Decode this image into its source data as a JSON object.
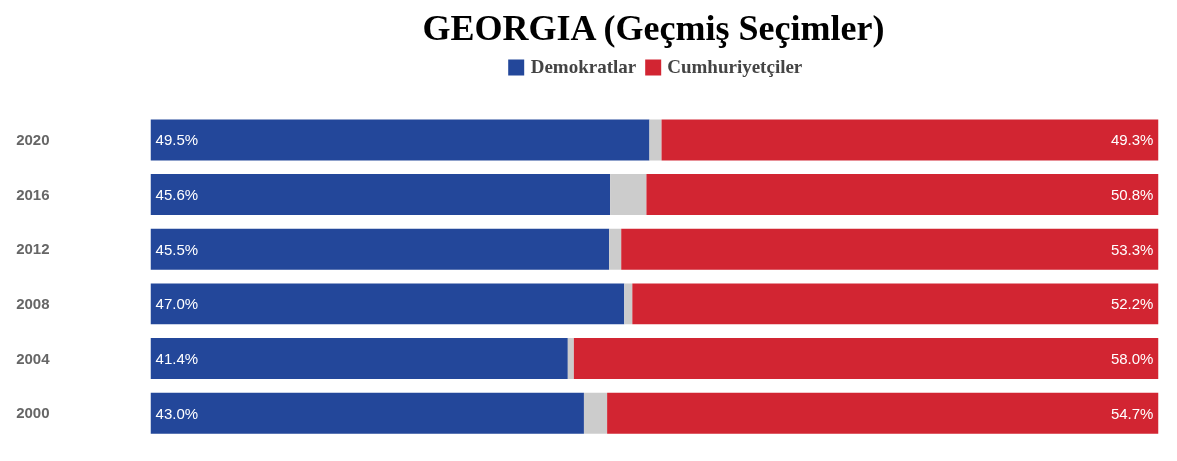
{
  "chart_data": {
    "type": "bar",
    "orientation": "horizontal",
    "stacked": true,
    "title": "GEORGIA (Geçmiş Seçimler)",
    "categories": [
      "2020",
      "2016",
      "2012",
      "2008",
      "2004",
      "2000"
    ],
    "series": [
      {
        "name": "Demokratlar",
        "color": "#23479a",
        "values": [
          49.5,
          45.6,
          45.5,
          47.0,
          41.4,
          43.0
        ],
        "value_labels": [
          "49.5%",
          "45.6%",
          "45.5%",
          "47.0%",
          "41.4%",
          "43.0%"
        ]
      },
      {
        "color": "#cccccc",
        "values": [
          1.2,
          3.6,
          1.2,
          0.8,
          0.6,
          2.3
        ]
      },
      {
        "name": "Cumhuriyetçiler",
        "color": "#d22532",
        "values": [
          49.3,
          50.8,
          53.3,
          52.2,
          58.0,
          54.7
        ],
        "value_labels": [
          "49.3%",
          "50.8%",
          "53.3%",
          "52.2%",
          "58.0%",
          "54.7%"
        ]
      }
    ],
    "xlim": [
      0,
      100
    ],
    "tick_labels": "y",
    "grid": false,
    "legend": "top"
  }
}
